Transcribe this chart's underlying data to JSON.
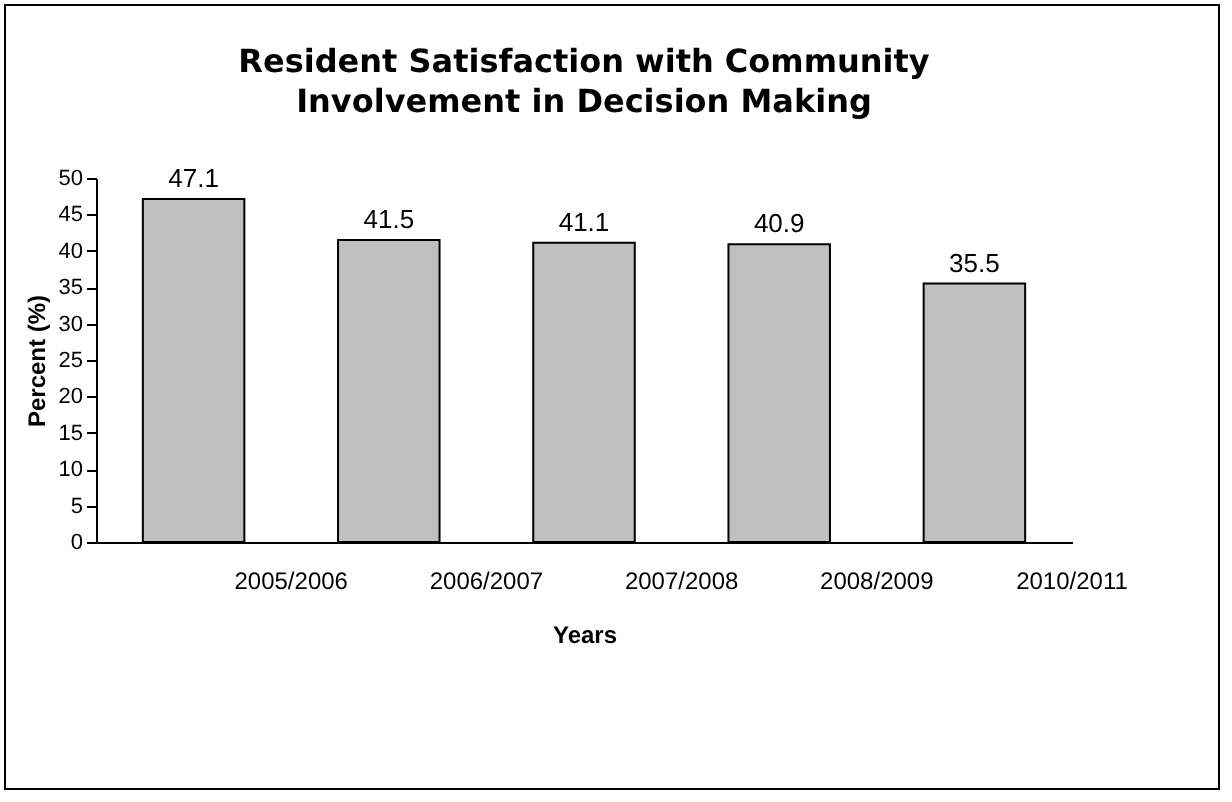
{
  "chart_data": {
    "type": "bar",
    "title": "Resident Satisfaction with Community\nInvolvement in Decision Making",
    "xlabel": "Years",
    "ylabel": "Percent (%)",
    "categories": [
      "2005/2006",
      "2006/2007",
      "2007/2008",
      "2008/2009",
      "2010/2011"
    ],
    "values": [
      47.1,
      41.5,
      41.1,
      40.9,
      35.5
    ],
    "color": "#c0c0c0",
    "ylim": [
      0,
      50
    ],
    "yticks": [
      0,
      5,
      10,
      15,
      20,
      25,
      30,
      35,
      40,
      45,
      50
    ],
    "grid": false,
    "data_labels": true
  }
}
